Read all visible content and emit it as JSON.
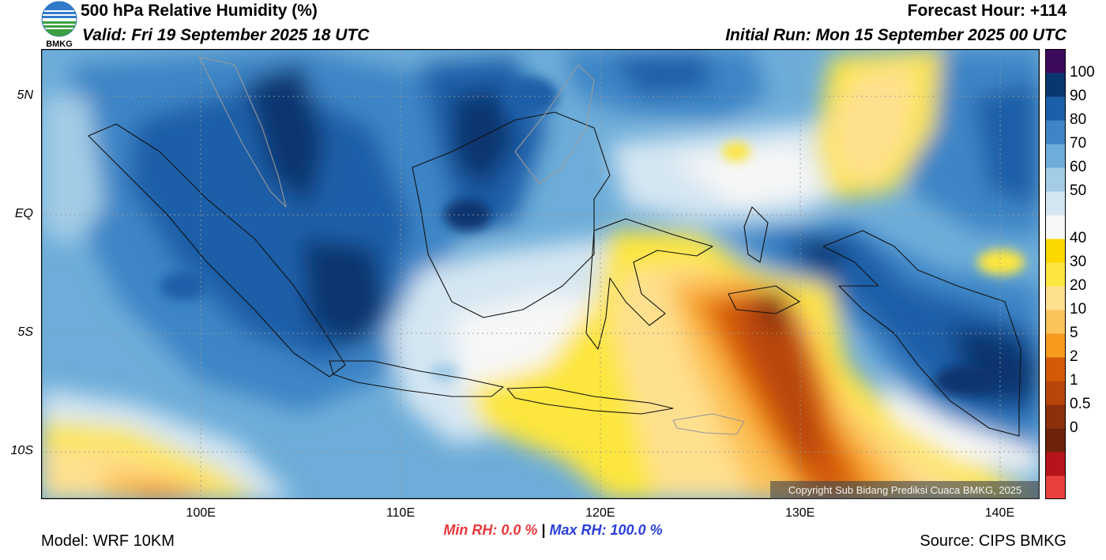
{
  "header": {
    "title": "500 hPa Relative Humidity (%)",
    "valid": "Valid: Fri 19 September 2025 18 UTC",
    "forecast_hour": "Forecast Hour: +114",
    "initial_run": "Initial Run: Mon 15 September 2025 00 UTC",
    "logo_text": "BMKG"
  },
  "map": {
    "lat_labels": [
      {
        "text": "5N",
        "lat": 5
      },
      {
        "text": "EQ",
        "lat": 0
      },
      {
        "text": "5S",
        "lat": -5
      },
      {
        "text": "10S",
        "lat": -10
      }
    ],
    "lon_labels": [
      {
        "text": "100E",
        "lon": 100
      },
      {
        "text": "110E",
        "lon": 110
      },
      {
        "text": "120E",
        "lon": 120
      },
      {
        "text": "130E",
        "lon": 130
      },
      {
        "text": "140E",
        "lon": 140
      }
    ],
    "lon_range": [
      92,
      142
    ],
    "lat_range": [
      -12,
      7
    ],
    "grid": true,
    "copyright": "Copyright Sub Bidang Prediksi Cuaca BMKG, 2025"
  },
  "colorbar": {
    "labels": [
      "100",
      "90",
      "80",
      "70",
      "60",
      "50",
      "40",
      "30",
      "20",
      "10",
      "5",
      "2",
      "1",
      "0.5",
      "0"
    ],
    "colors": [
      "#e8403d",
      "#b5141b",
      "#6e2209",
      "#8c300b",
      "#b8460b",
      "#d45a08",
      "#f79a1e",
      "#fcc35a",
      "#ffe08f",
      "#fde63d",
      "#fbd800",
      "#f7f7f7",
      "#d4e6f2",
      "#a3cce6",
      "#6eadd9",
      "#3d85c6",
      "#1a5fa8",
      "#0a3670",
      "#3c0b5c"
    ],
    "legend_placement": "right"
  },
  "stats": {
    "min_rh": "Min RH:   0.0 %",
    "separator": "|",
    "max_rh": "Max RH: 100.0 %"
  },
  "footer": {
    "model": "Model: WRF 10KM",
    "source": "Source: CIPS BMKG"
  }
}
